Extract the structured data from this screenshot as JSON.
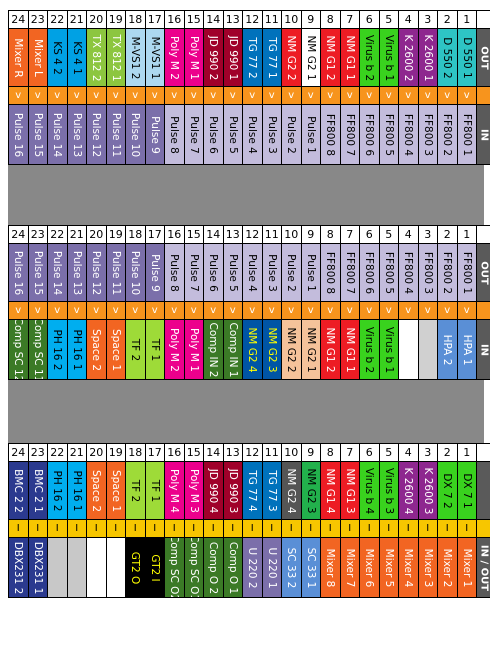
{
  "sections": [
    {
      "numbers": [
        "24",
        "23",
        "22",
        "21",
        "20",
        "19",
        "18",
        "17",
        "16",
        "15",
        "14",
        "13",
        "12",
        "11",
        "10",
        "9",
        "8",
        "7",
        "6",
        "5",
        "4",
        "3",
        "2",
        "1"
      ],
      "top_labels": [
        {
          "text": "Mixer R",
          "bg": "#f26522",
          "fg": "#ffffff"
        },
        {
          "text": "Mixer L",
          "bg": "#f26522",
          "fg": "#ffffff"
        },
        {
          "text": "KS 4 2",
          "bg": "#00a1e4",
          "fg": "#000000"
        },
        {
          "text": "KS 4 1",
          "bg": "#00a1e4",
          "fg": "#000000"
        },
        {
          "text": "TX 812 2",
          "bg": "#8cc63f",
          "fg": "#ffffff"
        },
        {
          "text": "TX 812 1",
          "bg": "#8cc63f",
          "fg": "#ffffff"
        },
        {
          "text": "M-VS1 2",
          "bg": "#add8f0",
          "fg": "#000000"
        },
        {
          "text": "M-VS1 1",
          "bg": "#add8f0",
          "fg": "#000000"
        },
        {
          "text": "Poly M 2",
          "bg": "#ec008c",
          "fg": "#ffffff"
        },
        {
          "text": "Poly M 1",
          "bg": "#ec008c",
          "fg": "#ffffff"
        },
        {
          "text": "JD 990 2",
          "bg": "#a0002a",
          "fg": "#ffffff"
        },
        {
          "text": "JD 990 1",
          "bg": "#a0002a",
          "fg": "#ffffff"
        },
        {
          "text": "TG 77 2",
          "bg": "#0072bc",
          "fg": "#ffffff"
        },
        {
          "text": "TG 77 1",
          "bg": "#0072bc",
          "fg": "#ffffff"
        },
        {
          "text": "NM G2 2",
          "bg": "#ed1c24",
          "fg": "#ffffff"
        },
        {
          "text": "NM G2 1",
          "bg": "#ffffff",
          "fg": "#000000"
        },
        {
          "text": "NM G1 2",
          "bg": "#ed1c24",
          "fg": "#ffffff"
        },
        {
          "text": "NM G1 1",
          "bg": "#ed1c24",
          "fg": "#ffffff"
        },
        {
          "text": "Virus b 2",
          "bg": "#39d21e",
          "fg": "#000000"
        },
        {
          "text": "Virus b 1",
          "bg": "#39d21e",
          "fg": "#000000"
        },
        {
          "text": "K 2600 2",
          "bg": "#8e278f",
          "fg": "#ffffff"
        },
        {
          "text": "K 2600 1",
          "bg": "#8e278f",
          "fg": "#ffffff"
        },
        {
          "text": "D 550 2",
          "bg": "#2ec4c4",
          "fg": "#000000"
        },
        {
          "text": "D 550 1",
          "bg": "#2ec4c4",
          "fg": "#000000"
        }
      ],
      "top_side": "OUT",
      "arrow_row": {
        "glyph": "v",
        "style": "orange"
      },
      "bottom_labels": [
        {
          "text": "Pulse 16",
          "bg": "#7b6faa",
          "fg": "#ffffff"
        },
        {
          "text": "Pulse 15",
          "bg": "#7b6faa",
          "fg": "#ffffff"
        },
        {
          "text": "Pulse 14",
          "bg": "#7b6faa",
          "fg": "#ffffff"
        },
        {
          "text": "Pulse 13",
          "bg": "#7b6faa",
          "fg": "#ffffff"
        },
        {
          "text": "Pulse 12",
          "bg": "#7b6faa",
          "fg": "#ffffff"
        },
        {
          "text": "Pulse 11",
          "bg": "#7b6faa",
          "fg": "#ffffff"
        },
        {
          "text": "Pulse 10",
          "bg": "#7b6faa",
          "fg": "#ffffff"
        },
        {
          "text": "Pulse 9",
          "bg": "#7b6faa",
          "fg": "#ffffff"
        },
        {
          "text": "Pulse 8",
          "bg": "#c3bcdc",
          "fg": "#000000"
        },
        {
          "text": "Pulse 7",
          "bg": "#c3bcdc",
          "fg": "#000000"
        },
        {
          "text": "Pulse 6",
          "bg": "#c3bcdc",
          "fg": "#000000"
        },
        {
          "text": "Pulse 5",
          "bg": "#c3bcdc",
          "fg": "#000000"
        },
        {
          "text": "Pulse 4",
          "bg": "#c3bcdc",
          "fg": "#000000"
        },
        {
          "text": "Pulse 3",
          "bg": "#c3bcdc",
          "fg": "#000000"
        },
        {
          "text": "Pulse 2",
          "bg": "#c3bcdc",
          "fg": "#000000"
        },
        {
          "text": "Pulse 1",
          "bg": "#c3bcdc",
          "fg": "#000000"
        },
        {
          "text": "FF800 8",
          "bg": "#c3bcdc",
          "fg": "#000000"
        },
        {
          "text": "FF800 7",
          "bg": "#c3bcdc",
          "fg": "#000000"
        },
        {
          "text": "FF800 6",
          "bg": "#c3bcdc",
          "fg": "#000000"
        },
        {
          "text": "FF800 5",
          "bg": "#c3bcdc",
          "fg": "#000000"
        },
        {
          "text": "FF800 4",
          "bg": "#c3bcdc",
          "fg": "#000000"
        },
        {
          "text": "FF800 3",
          "bg": "#c3bcdc",
          "fg": "#000000"
        },
        {
          "text": "FF800 2",
          "bg": "#c3bcdc",
          "fg": "#000000"
        },
        {
          "text": "FF800 1",
          "bg": "#c3bcdc",
          "fg": "#000000"
        }
      ],
      "bottom_side": "IN"
    },
    {
      "numbers": [
        "24",
        "23",
        "22",
        "21",
        "20",
        "19",
        "18",
        "17",
        "16",
        "15",
        "14",
        "13",
        "12",
        "11",
        "10",
        "9",
        "8",
        "7",
        "6",
        "5",
        "4",
        "3",
        "2",
        "1"
      ],
      "top_labels": [
        {
          "text": "Pulse 16",
          "bg": "#7b6faa",
          "fg": "#ffffff"
        },
        {
          "text": "Pulse 15",
          "bg": "#7b6faa",
          "fg": "#ffffff"
        },
        {
          "text": "Pulse 14",
          "bg": "#7b6faa",
          "fg": "#ffffff"
        },
        {
          "text": "Pulse 13",
          "bg": "#7b6faa",
          "fg": "#ffffff"
        },
        {
          "text": "Pulse 12",
          "bg": "#7b6faa",
          "fg": "#ffffff"
        },
        {
          "text": "Pulse 11",
          "bg": "#7b6faa",
          "fg": "#ffffff"
        },
        {
          "text": "Pulse 10",
          "bg": "#7b6faa",
          "fg": "#ffffff"
        },
        {
          "text": "Pulse 9",
          "bg": "#7b6faa",
          "fg": "#ffffff"
        },
        {
          "text": "Pulse 8",
          "bg": "#c3bcdc",
          "fg": "#000000"
        },
        {
          "text": "Pulse 7",
          "bg": "#c3bcdc",
          "fg": "#000000"
        },
        {
          "text": "Pulse 6",
          "bg": "#c3bcdc",
          "fg": "#000000"
        },
        {
          "text": "Pulse 5",
          "bg": "#c3bcdc",
          "fg": "#000000"
        },
        {
          "text": "Pulse 4",
          "bg": "#c3bcdc",
          "fg": "#000000"
        },
        {
          "text": "Pulse 3",
          "bg": "#c3bcdc",
          "fg": "#000000"
        },
        {
          "text": "Pulse 2",
          "bg": "#c3bcdc",
          "fg": "#000000"
        },
        {
          "text": "Pulse 1",
          "bg": "#c3bcdc",
          "fg": "#000000"
        },
        {
          "text": "FF800 8",
          "bg": "#c3bcdc",
          "fg": "#000000"
        },
        {
          "text": "FF800 7",
          "bg": "#c3bcdc",
          "fg": "#000000"
        },
        {
          "text": "FF800 6",
          "bg": "#c3bcdc",
          "fg": "#000000"
        },
        {
          "text": "FF800 5",
          "bg": "#c3bcdc",
          "fg": "#000000"
        },
        {
          "text": "FF800 4",
          "bg": "#c3bcdc",
          "fg": "#000000"
        },
        {
          "text": "FF800 3",
          "bg": "#c3bcdc",
          "fg": "#000000"
        },
        {
          "text": "FF800 2",
          "bg": "#c3bcdc",
          "fg": "#000000"
        },
        {
          "text": "FF800 1",
          "bg": "#c3bcdc",
          "fg": "#000000"
        }
      ],
      "top_side": "OUT",
      "arrow_row": {
        "glyph": "v",
        "style": "orange"
      },
      "bottom_labels": [
        {
          "text": "Comp SC 12",
          "bg": "#3b7a26",
          "fg": "#ffffff"
        },
        {
          "text": "Comp SC 11",
          "bg": "#3b7a26",
          "fg": "#ffffff"
        },
        {
          "text": "PH 16 2",
          "bg": "#00aeef",
          "fg": "#000000"
        },
        {
          "text": "PH 16 1",
          "bg": "#00aeef",
          "fg": "#000000"
        },
        {
          "text": "Space 2",
          "bg": "#f26522",
          "fg": "#ffffff"
        },
        {
          "text": "Space 1",
          "bg": "#f26522",
          "fg": "#ffffff"
        },
        {
          "text": "TF 2",
          "bg": "#9edb38",
          "fg": "#000000"
        },
        {
          "text": "TF 1",
          "bg": "#9edb38",
          "fg": "#000000"
        },
        {
          "text": "Poly M 2",
          "bg": "#ec008c",
          "fg": "#ffffff"
        },
        {
          "text": "Poly M 1",
          "bg": "#ec008c",
          "fg": "#ffffff"
        },
        {
          "text": "Comp IN 2",
          "bg": "#3b7a26",
          "fg": "#ffffff"
        },
        {
          "text": "Comp IN 1",
          "bg": "#3b7a26",
          "fg": "#ffffff"
        },
        {
          "text": "NM G2 4",
          "bg": "#0055a5",
          "fg": "#ffff00"
        },
        {
          "text": "NM G2 3",
          "bg": "#0055a5",
          "fg": "#ffff00"
        },
        {
          "text": "NM G2 2",
          "bg": "#f5c29a",
          "fg": "#000000"
        },
        {
          "text": "NM G2 1",
          "bg": "#f5c29a",
          "fg": "#000000"
        },
        {
          "text": "NM G1 2",
          "bg": "#ed1c24",
          "fg": "#ffffff"
        },
        {
          "text": "NM G1 1",
          "bg": "#ed1c24",
          "fg": "#ffffff"
        },
        {
          "text": "Virus b 2",
          "bg": "#39d21e",
          "fg": "#000000"
        },
        {
          "text": "Virus b 1",
          "bg": "#39d21e",
          "fg": "#000000"
        },
        {
          "text": "",
          "bg": "#ffffff",
          "fg": "#000000"
        },
        {
          "text": "",
          "bg": "#d0d0d0",
          "fg": "#000000"
        },
        {
          "text": "HPA 2",
          "bg": "#5a8fd6",
          "fg": "#ffffff"
        },
        {
          "text": "HPA 1",
          "bg": "#5a8fd6",
          "fg": "#ffffff"
        }
      ],
      "bottom_side": "IN"
    },
    {
      "numbers": [
        "24",
        "23",
        "22",
        "21",
        "20",
        "19",
        "18",
        "17",
        "16",
        "15",
        "14",
        "13",
        "12",
        "11",
        "10",
        "9",
        "8",
        "7",
        "6",
        "5",
        "4",
        "3",
        "2",
        "1"
      ],
      "top_labels": [
        {
          "text": "BMC 2 2",
          "bg": "#2b3a8f",
          "fg": "#ffffff"
        },
        {
          "text": "BMC 2 1",
          "bg": "#2b3a8f",
          "fg": "#ffffff"
        },
        {
          "text": "PH 16 2",
          "bg": "#00aeef",
          "fg": "#000000"
        },
        {
          "text": "PH 16 1",
          "bg": "#00aeef",
          "fg": "#000000"
        },
        {
          "text": "Space 2",
          "bg": "#f26522",
          "fg": "#ffffff"
        },
        {
          "text": "Space 1",
          "bg": "#f26522",
          "fg": "#ffffff"
        },
        {
          "text": "TF 2",
          "bg": "#9edb38",
          "fg": "#000000"
        },
        {
          "text": "TF 1",
          "bg": "#9edb38",
          "fg": "#000000"
        },
        {
          "text": "Poly M 4",
          "bg": "#ec008c",
          "fg": "#ffffff"
        },
        {
          "text": "Poly M 3",
          "bg": "#ec008c",
          "fg": "#ffffff"
        },
        {
          "text": "JD 990 4",
          "bg": "#a0002a",
          "fg": "#ffffff"
        },
        {
          "text": "JD 990 3",
          "bg": "#a0002a",
          "fg": "#ffffff"
        },
        {
          "text": "TG 77 4",
          "bg": "#0072bc",
          "fg": "#ffffff"
        },
        {
          "text": "TG 77 3",
          "bg": "#0072bc",
          "fg": "#ffffff"
        },
        {
          "text": "NM G2 4",
          "bg": "#555555",
          "fg": "#ffffff"
        },
        {
          "text": "NM G2 3",
          "bg": "#22b14c",
          "fg": "#000000"
        },
        {
          "text": "NM G1 4",
          "bg": "#ed1c24",
          "fg": "#ffffff"
        },
        {
          "text": "NM G1 3",
          "bg": "#ed1c24",
          "fg": "#ffffff"
        },
        {
          "text": "Virus b 4",
          "bg": "#39d21e",
          "fg": "#000000"
        },
        {
          "text": "Virus b 3",
          "bg": "#39d21e",
          "fg": "#000000"
        },
        {
          "text": "K 2600 4",
          "bg": "#8e278f",
          "fg": "#ffffff"
        },
        {
          "text": "K 2600 3",
          "bg": "#8e278f",
          "fg": "#ffffff"
        },
        {
          "text": "DX 7 2",
          "bg": "#39d21e",
          "fg": "#000000"
        },
        {
          "text": "DX 7 1",
          "bg": "#39d21e",
          "fg": "#000000"
        }
      ],
      "top_side": "",
      "arrow_row": {
        "glyph": "I",
        "style": "yellow"
      },
      "bottom_labels": [
        {
          "text": "DBX231 2",
          "bg": "#2b3a8f",
          "fg": "#ffffff"
        },
        {
          "text": "DBX231 1",
          "bg": "#2b3a8f",
          "fg": "#ffffff"
        },
        {
          "text": "",
          "bg": "#c8c8c8",
          "fg": "#000000"
        },
        {
          "text": "",
          "bg": "#c8c8c8",
          "fg": "#000000"
        },
        {
          "text": "",
          "bg": "#ffffff",
          "fg": "#000000"
        },
        {
          "text": "",
          "bg": "#ffffff",
          "fg": "#000000"
        },
        {
          "text": "GT2 O",
          "bg": "#000000",
          "fg": "#ffff00"
        },
        {
          "text": "GT2 I",
          "bg": "#000000",
          "fg": "#ffff00"
        },
        {
          "text": "Comp SC O2",
          "bg": "#3b7a26",
          "fg": "#ffffff"
        },
        {
          "text": "Comp SC O1",
          "bg": "#3b7a26",
          "fg": "#ffffff"
        },
        {
          "text": "Comp O 2",
          "bg": "#3b7a26",
          "fg": "#ffffff"
        },
        {
          "text": "Comp O 1",
          "bg": "#3b7a26",
          "fg": "#ffffff"
        },
        {
          "text": "U 220 2",
          "bg": "#7b6faa",
          "fg": "#ffffff"
        },
        {
          "text": "U 220 1",
          "bg": "#7b6faa",
          "fg": "#ffffff"
        },
        {
          "text": "SC 33 2",
          "bg": "#5a8fd6",
          "fg": "#ffffff"
        },
        {
          "text": "SC 33 1",
          "bg": "#5a8fd6",
          "fg": "#ffffff"
        },
        {
          "text": "Mixer 8",
          "bg": "#f26522",
          "fg": "#ffffff"
        },
        {
          "text": "Mixer 7",
          "bg": "#f26522",
          "fg": "#ffffff"
        },
        {
          "text": "Mixer 6",
          "bg": "#f26522",
          "fg": "#ffffff"
        },
        {
          "text": "Mixer 5",
          "bg": "#f26522",
          "fg": "#ffffff"
        },
        {
          "text": "Mixer 4",
          "bg": "#f26522",
          "fg": "#ffffff"
        },
        {
          "text": "Mixer 3",
          "bg": "#f26522",
          "fg": "#ffffff"
        },
        {
          "text": "Mixer 2",
          "bg": "#f26522",
          "fg": "#ffffff"
        },
        {
          "text": "Mixer 1",
          "bg": "#f26522",
          "fg": "#ffffff"
        }
      ],
      "bottom_side": "IN / OUT"
    }
  ]
}
